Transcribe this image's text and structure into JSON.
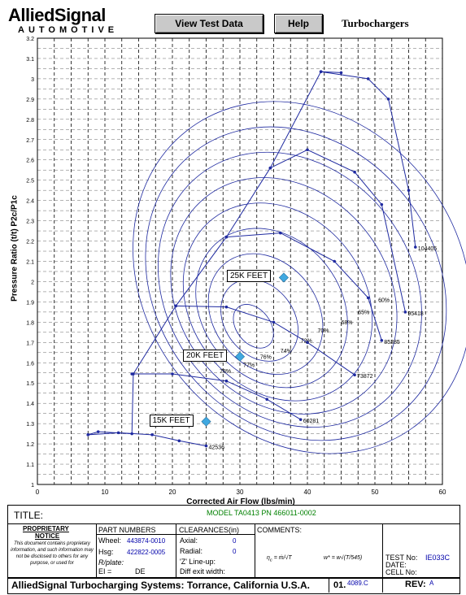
{
  "header": {
    "logo_brand": "AlliedSignal",
    "logo_sub": "AUTOMOTIVE",
    "view_button": "View Test Data",
    "help_button": "Help",
    "section_title": "Turbochargers"
  },
  "chart_data": {
    "type": "scatter",
    "xlabel": "Corrected Air Flow (lbs/min)",
    "ylabel": "Pressure Ratio (t/t) P2c/P1c",
    "xlim": [
      0,
      60
    ],
    "ylim": [
      1,
      3.2
    ],
    "xticks": [
      "0",
      "10",
      "20",
      "30",
      "40",
      "50",
      "60"
    ],
    "yticks": [
      "1",
      "1.1",
      "1.2",
      "1.3",
      "1.4",
      "1.5",
      "1.6",
      "1.7",
      "1.8",
      "1.9",
      "2",
      "2.1",
      "2.2",
      "2.3",
      "2.4",
      "2.5",
      "2.6",
      "2.7",
      "2.8",
      "2.9",
      "3",
      "3.1",
      "3.2"
    ],
    "grid": true,
    "surge_line": [
      [
        7.5,
        1.245
      ],
      [
        9,
        1.26
      ],
      [
        14,
        1.25
      ],
      [
        14.2,
        1.545
      ],
      [
        20.5,
        1.88
      ],
      [
        28,
        2.22
      ],
      [
        34.5,
        2.56
      ],
      [
        42,
        3.035
      ],
      [
        45,
        3.03
      ]
    ],
    "speed_lines": [
      {
        "label": "42536",
        "points": [
          [
            7.5,
            1.245
          ],
          [
            12,
            1.255
          ],
          [
            17,
            1.245
          ],
          [
            21,
            1.215
          ],
          [
            25,
            1.19
          ]
        ]
      },
      {
        "label": "60281",
        "points": [
          [
            14,
            1.545
          ],
          [
            20,
            1.545
          ],
          [
            28,
            1.51
          ],
          [
            34,
            1.42
          ],
          [
            39,
            1.32
          ]
        ]
      },
      {
        "label": "73872",
        "points": [
          [
            20.5,
            1.88
          ],
          [
            28,
            1.875
          ],
          [
            35,
            1.8
          ],
          [
            40,
            1.7
          ],
          [
            47,
            1.54
          ]
        ]
      },
      {
        "label": "85285",
        "points": [
          [
            28,
            2.22
          ],
          [
            36,
            2.24
          ],
          [
            44,
            2.1
          ],
          [
            49,
            1.92
          ],
          [
            51,
            1.71
          ]
        ]
      },
      {
        "label": "95418",
        "points": [
          [
            34.5,
            2.56
          ],
          [
            40,
            2.65
          ],
          [
            47,
            2.54
          ],
          [
            51,
            2.38
          ],
          [
            54.5,
            1.85
          ]
        ]
      },
      {
        "label": "104405",
        "points": [
          [
            42,
            3.035
          ],
          [
            49,
            3.0
          ],
          [
            52,
            2.9
          ],
          [
            55,
            2.45
          ],
          [
            56,
            2.17
          ]
        ]
      }
    ],
    "efficiency_labels": [
      "60%",
      "65%",
      "68%",
      "70%",
      "72%",
      "74%",
      "76%",
      "77%",
      "78%"
    ],
    "operating_points": [
      {
        "label": "15K FEET",
        "x": 25,
        "y": 1.31
      },
      {
        "label": "20K FEET",
        "x": 30,
        "y": 1.63
      },
      {
        "label": "25K FEET",
        "x": 36.5,
        "y": 2.02
      }
    ],
    "colors": {
      "line": "#1f2aa0",
      "marker": "#40a8e0",
      "grid": "#000000"
    }
  },
  "form": {
    "title_label": "TITLE:",
    "model": "MODEL TA0413 PN 466011-0002",
    "proprietary_heading": "PROPRIETARY",
    "notice_heading": "NOTICE",
    "proprietary_text": "This document contains proprietary information, and such information may not be disclosed to others for any purpose, or used for",
    "part_numbers_heading": "PART NUMBERS",
    "wheel_label": "Wheel:",
    "wheel_value": "443874-0010",
    "hsg_label": "Hsg:",
    "hsg_value": "422822-0005",
    "rplate_label": "R/plate:",
    "ei_label": "EI =",
    "ei_value": "DE",
    "clearances_heading": "CLEARANCES(in)",
    "axial_label": "Axial:",
    "axial_value": "0",
    "radial_label": "Radial:",
    "radial_value": "0",
    "zline_label": "'Z' Line-up:",
    "diff_label": "Diff exit width:",
    "comments_label": "COMMENTS:",
    "test_no_label": "TEST No:",
    "test_no_value": "IE033C",
    "date_label": "DATE:",
    "cell_label": "CELL No:",
    "footer_company": "AlliedSignal Turbocharging Systems: Torrance, California U.S.A.",
    "doc_no_prefix": "01.",
    "doc_no_value": "4089.C",
    "rev_label": "REV:",
    "rev_value": "A"
  }
}
